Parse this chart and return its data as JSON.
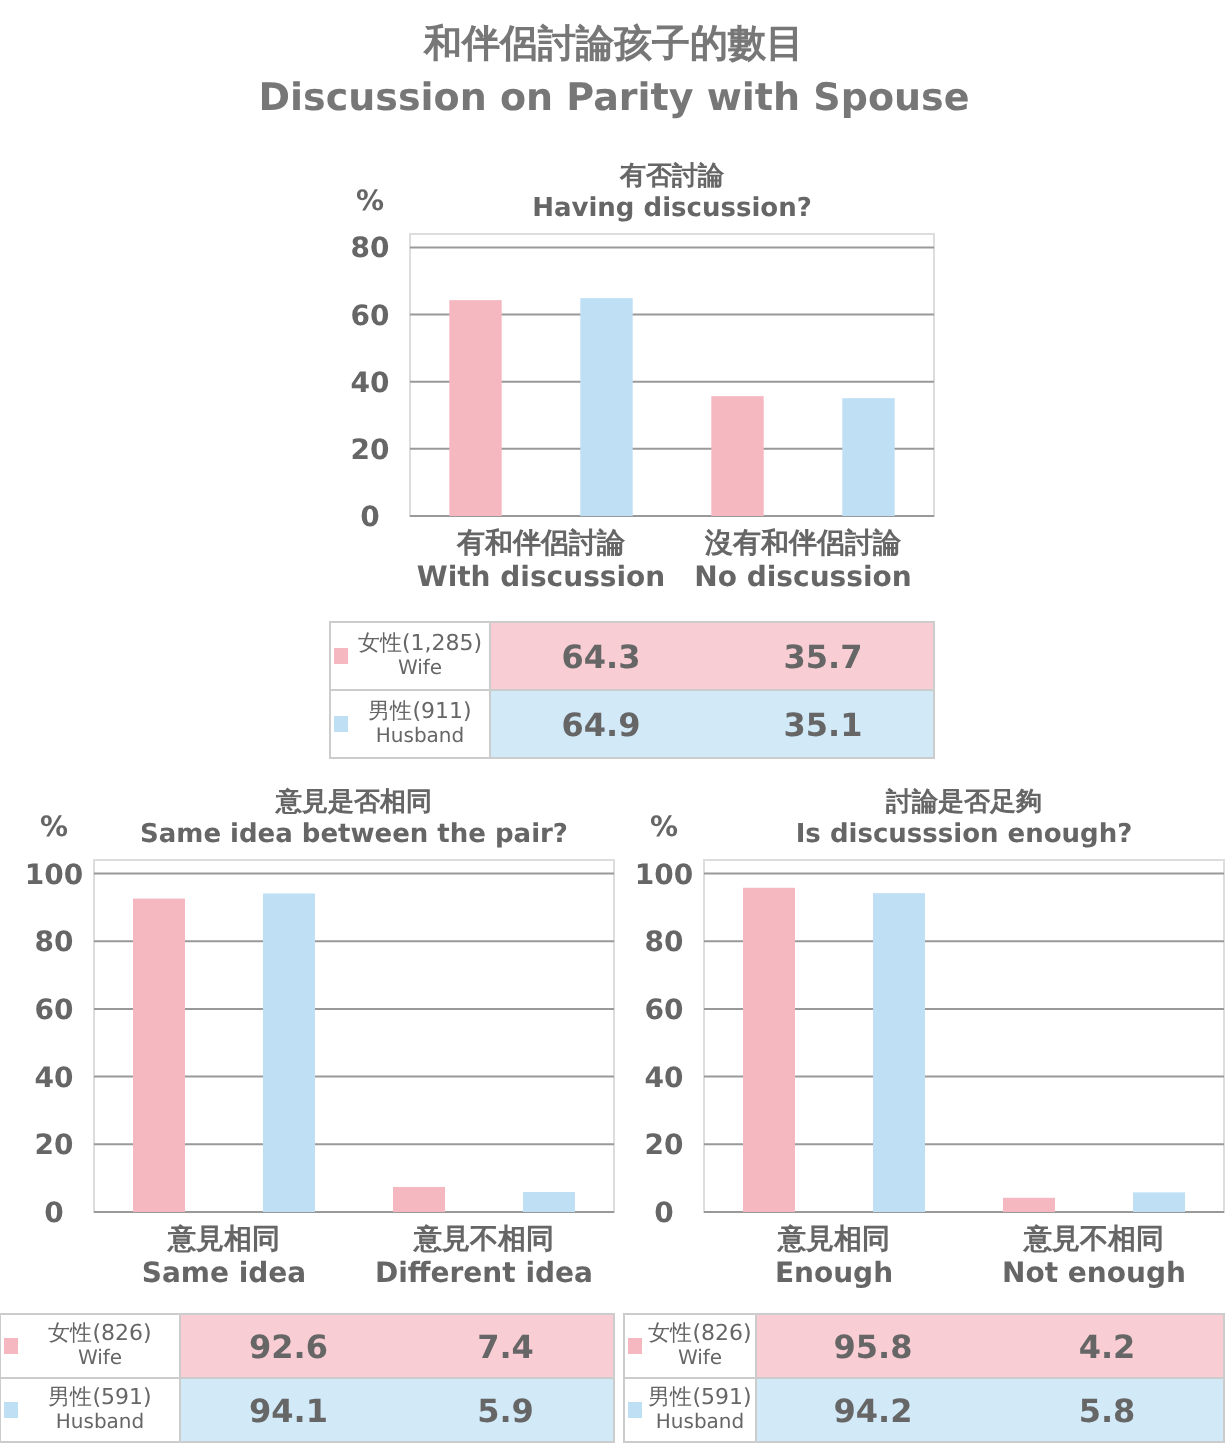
{
  "chart_data": [
    {
      "type": "bar",
      "title": "和伴侶討論孩子的數目\nDiscussion on Parity with Spouse",
      "subtitle": "有否討論\nHaving discussion?",
      "ylabel": "%",
      "categories": [
        "有和伴侶討論\nWith discussion",
        "沒有和伴侶討論\nNo discussion"
      ],
      "series": [
        {
          "name": "女性(1,285)\nWife",
          "color": "#f5b8c0",
          "values": [
            64.3,
            35.7
          ]
        },
        {
          "name": "男性(911)\nHusband",
          "color": "#bfdff5",
          "values": [
            64.9,
            35.1
          ]
        }
      ],
      "ylim": [
        0,
        84
      ],
      "yticks": [
        0,
        20,
        40,
        60,
        80
      ],
      "grid": "y",
      "data_labels": true,
      "legend": "bottom"
    },
    {
      "type": "bar",
      "title": "意見是否相同\nSame idea between the pair?",
      "ylabel": "%",
      "categories": [
        "意見相同\nSame idea",
        "意見不相同\nDifferent idea"
      ],
      "series": [
        {
          "name": "女性(826)\nWife",
          "color": "#f5b8c0",
          "values": [
            92.6,
            7.4
          ]
        },
        {
          "name": "男性(591)\nHusband",
          "color": "#bfdff5",
          "values": [
            94.1,
            5.9
          ]
        }
      ],
      "ylim": [
        0,
        104
      ],
      "yticks": [
        0,
        20,
        40,
        60,
        80,
        100
      ],
      "grid": "y",
      "data_labels": true,
      "legend": "bottom"
    },
    {
      "type": "bar",
      "title": "討論是否足夠\nIs discusssion enough?",
      "ylabel": "%",
      "categories": [
        "意見相同\nEnough",
        "意見不相同\nNot enough"
      ],
      "series": [
        {
          "name": "女性(826)\nWife",
          "color": "#f5b8c0",
          "values": [
            95.8,
            4.2
          ]
        },
        {
          "name": "男性(591)\nHusband",
          "color": "#bfdff5",
          "values": [
            94.2,
            5.8
          ]
        }
      ],
      "ylim": [
        0,
        104
      ],
      "yticks": [
        0,
        20,
        40,
        60,
        80,
        100
      ],
      "grid": "y",
      "data_labels": true,
      "legend": "bottom"
    }
  ]
}
